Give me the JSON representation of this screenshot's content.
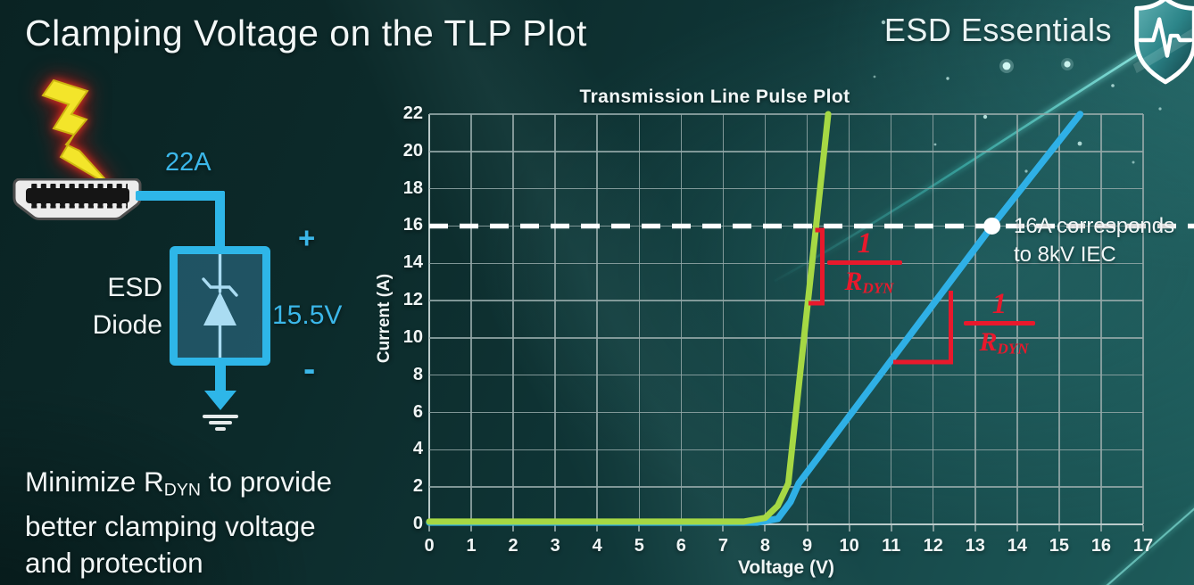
{
  "header": {
    "title": "Clamping Voltage on the TLP Plot",
    "brand": "ESD Essentials"
  },
  "diagram": {
    "surge_current": "22A",
    "esd_label_line1": "ESD",
    "esd_label_line2": "Diode",
    "plus_sign": "+",
    "minus_sign": "-",
    "clamping_voltage": "15.5V"
  },
  "note": {
    "line1_pre": "Minimize R",
    "line1_sub": "DYN",
    "line1_post": " to provide",
    "line2": "better clamping voltage",
    "line3": "and protection"
  },
  "colors": {
    "accent_cyan": "#2eb6e8",
    "curve_green": "#a6d844",
    "curve_blue": "#2fb0e6",
    "annotation_red": "#e8192c",
    "grid_gray": "#94a8a8",
    "background_teal_dark": "#0a2323",
    "background_teal_light": "#1d5b5a",
    "lightning_yellow": "#f3e52a"
  },
  "chart_data": {
    "type": "line",
    "title": "Transmission Line Pulse Plot",
    "xlabel": "Voltage (V)",
    "ylabel": "Current (A)",
    "xlim": [
      0,
      17
    ],
    "ylim": [
      0,
      22
    ],
    "x_ticks": [
      0,
      1,
      2,
      3,
      4,
      5,
      6,
      7,
      8,
      9,
      10,
      11,
      12,
      13,
      14,
      15,
      16,
      17
    ],
    "y_ticks": [
      0,
      2,
      4,
      6,
      8,
      10,
      12,
      14,
      16,
      18,
      20,
      22
    ],
    "grid": true,
    "legend": "none",
    "series": [
      {
        "name": "green-low-rdyn-diode",
        "color": "#a6d844",
        "points": [
          [
            0,
            0.15
          ],
          [
            7.5,
            0.15
          ],
          [
            8.0,
            0.35
          ],
          [
            8.3,
            1.0
          ],
          [
            8.55,
            2.2
          ],
          [
            9.5,
            22
          ]
        ]
      },
      {
        "name": "blue-high-rdyn-diode",
        "color": "#2fb0e6",
        "points": [
          [
            0,
            0.1
          ],
          [
            7.8,
            0.1
          ],
          [
            8.3,
            0.3
          ],
          [
            8.6,
            1.2
          ],
          [
            8.8,
            2.2
          ],
          [
            13.4,
            16
          ],
          [
            15.5,
            22
          ]
        ]
      }
    ],
    "reference_line": {
      "y": 16,
      "color": "#ffffff",
      "style": "dashed"
    },
    "marker": {
      "x": 13.4,
      "y": 16,
      "color": "#ffffff",
      "label_line1": "16A corresponds",
      "label_line2": "to 8kV IEC"
    },
    "annotations": [
      {
        "numerator": "1",
        "denominator_main": "R",
        "denominator_sub": "DYN",
        "color": "#e8192c",
        "attached_to": "green-low-rdyn-diode"
      },
      {
        "numerator": "1",
        "denominator_main": "R",
        "denominator_sub": "DYN",
        "color": "#e8192c",
        "attached_to": "blue-high-rdyn-diode"
      }
    ]
  }
}
